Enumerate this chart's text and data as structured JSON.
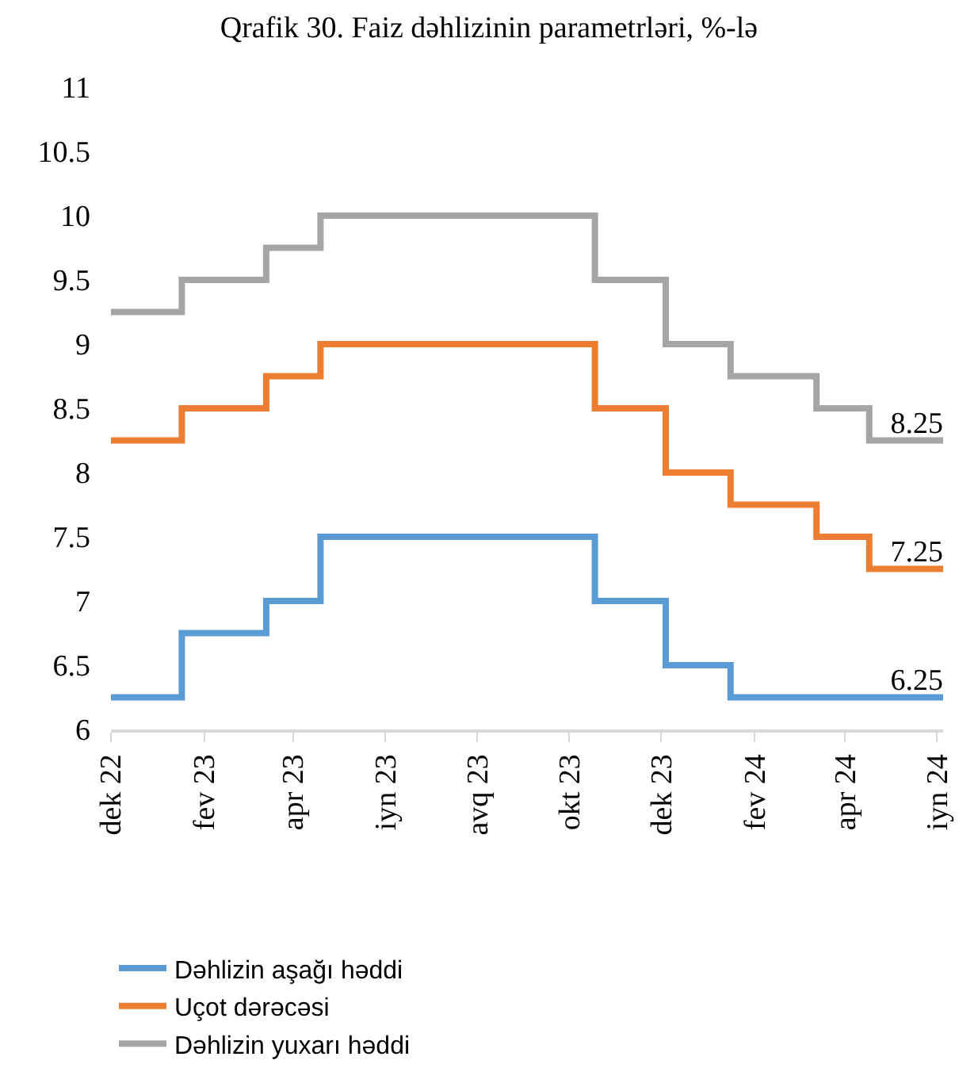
{
  "chart_data": {
    "type": "step",
    "title": "Qrafik 30. Faiz dəhlizinin parametrləri, %-lə",
    "x": [
      "2022-12-01",
      "2023-01-17",
      "2023-03-14",
      "2023-04-19",
      "2023-10-18",
      "2023-12-04",
      "2024-01-16",
      "2024-03-13",
      "2024-04-17",
      "2024-06-05"
    ],
    "series": [
      {
        "name": "Dəhlizin aşağı həddi",
        "color": "#5b9bd5",
        "values": [
          6.25,
          6.75,
          7,
          7.5,
          7,
          6.5,
          6.25,
          6.25,
          6.25,
          6.25
        ],
        "value_labels": [
          null,
          null,
          null,
          null,
          null,
          null,
          null,
          null,
          null,
          "6.25"
        ]
      },
      {
        "name": "Uçot dərəcəsi",
        "color": "#ed7d31",
        "values": [
          8.25,
          8.5,
          8.75,
          9,
          8.5,
          8,
          7.75,
          7.5,
          7.25,
          7.25
        ],
        "value_labels": [
          null,
          null,
          null,
          null,
          null,
          null,
          null,
          null,
          null,
          "7.25"
        ]
      },
      {
        "name": "Dəhlizin yuxarı həddi",
        "color": "#a5a5a5",
        "values": [
          9.25,
          9.5,
          9.75,
          10,
          9.5,
          9,
          8.75,
          8.5,
          8.25,
          8.25
        ],
        "value_labels": [
          null,
          null,
          null,
          null,
          null,
          null,
          null,
          null,
          null,
          "8.25"
        ]
      }
    ],
    "xlim": [
      "2022-12-01",
      "2024-06-05"
    ],
    "xticks": [
      {
        "value": "2022-12-01",
        "label": "dek 22"
      },
      {
        "value": "2023-02-01",
        "label": "fev 23"
      },
      {
        "value": "2023-04-01",
        "label": "apr 23"
      },
      {
        "value": "2023-06-01",
        "label": "iyn 23"
      },
      {
        "value": "2023-08-01",
        "label": "avq 23"
      },
      {
        "value": "2023-10-01",
        "label": "okt 23"
      },
      {
        "value": "2023-12-01",
        "label": "dek 23"
      },
      {
        "value": "2024-02-01",
        "label": "fev 24"
      },
      {
        "value": "2024-04-01",
        "label": "apr 24"
      },
      {
        "value": "2024-06-01",
        "label": "iyn 24"
      }
    ],
    "ylim": [
      6,
      11
    ],
    "yticks": [
      6,
      6.5,
      7,
      7.5,
      8,
      8.5,
      9,
      9.5,
      10,
      10.5,
      11
    ],
    "legend": "bottom",
    "marker": "none",
    "line_style": "solid"
  }
}
